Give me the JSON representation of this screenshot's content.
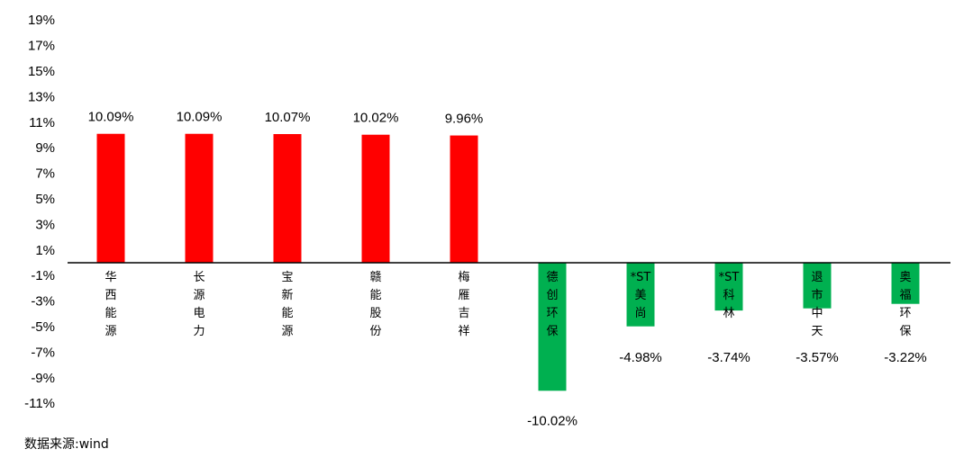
{
  "chart_data": {
    "type": "bar",
    "categories": [
      "华西能源",
      "长源电力",
      "宝新能源",
      "赣能股份",
      "梅雁吉祥",
      "德创环保",
      "*ST美尚",
      "*ST科林",
      "退市中天",
      "奥福环保"
    ],
    "values": [
      10.09,
      10.09,
      10.07,
      10.02,
      9.96,
      -10.02,
      -4.98,
      -3.74,
      -3.57,
      -3.22
    ],
    "data_labels": [
      "10.09%",
      "10.09%",
      "10.07%",
      "10.02%",
      "9.96%",
      "-10.02%",
      "-4.98%",
      "-3.74%",
      "-3.57%",
      "-3.22%"
    ],
    "y_ticks": [
      19,
      17,
      15,
      13,
      11,
      9,
      7,
      5,
      3,
      1,
      -1,
      -3,
      -5,
      -7,
      -9,
      -11
    ],
    "y_tick_labels": [
      "19%",
      "17%",
      "15%",
      "13%",
      "11%",
      "9%",
      "7%",
      "5%",
      "3%",
      "1%",
      "-1%",
      "-3%",
      "-5%",
      "-7%",
      "-9%",
      "-11%"
    ],
    "ylim": [
      -11,
      19
    ],
    "grid": false,
    "colors": {
      "positive": "#ff0000",
      "negative": "#00b050"
    }
  },
  "source_text": "数据来源:wind"
}
